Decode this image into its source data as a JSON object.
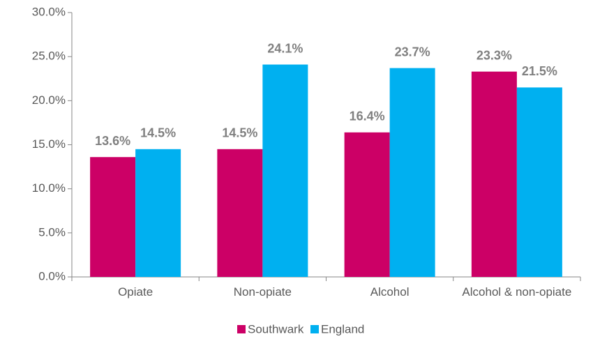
{
  "chart_data": {
    "type": "bar",
    "categories": [
      "Opiate",
      "Non-opiate",
      "Alcohol",
      "Alcohol & non-opiate"
    ],
    "series": [
      {
        "name": "Southwark",
        "color": "#cc0066",
        "values": [
          13.6,
          14.5,
          16.4,
          23.3
        ],
        "value_labels": [
          "13.6%",
          "14.5%",
          "16.4%",
          "23.3%"
        ]
      },
      {
        "name": "England",
        "color": "#00b0f0",
        "values": [
          14.5,
          24.1,
          23.7,
          21.5
        ],
        "value_labels": [
          "14.5%",
          "24.1%",
          "23.7%",
          "21.5%"
        ]
      }
    ],
    "ylim": [
      0,
      30
    ],
    "yticks": [
      {
        "value": 0,
        "label": "0.0%"
      },
      {
        "value": 5,
        "label": "5.0%"
      },
      {
        "value": 10,
        "label": "10.0%"
      },
      {
        "value": 15,
        "label": "15.0%"
      },
      {
        "value": 20,
        "label": "20.0%"
      },
      {
        "value": 25,
        "label": "25.0%"
      },
      {
        "value": 30,
        "label": "30.0%"
      }
    ],
    "legend": "bottom"
  }
}
